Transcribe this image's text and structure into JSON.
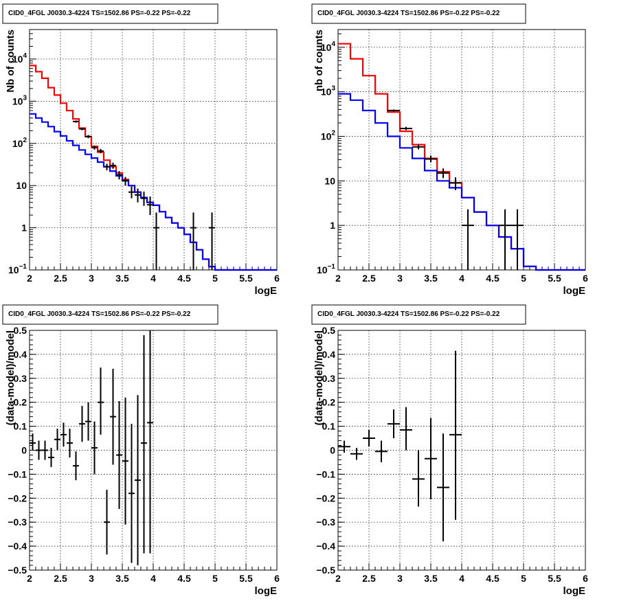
{
  "chart_data": [
    {
      "type": "line",
      "panel": "top-left",
      "title": "CID0_4FGL J0030.3-4224 TS=1502.86 PS=-0.22 PS=-0.22",
      "xlabel": "logE",
      "ylabel": "Nb of counts",
      "xlim": [
        2,
        6
      ],
      "ylim": [
        0.1,
        50000
      ],
      "yscale": "log",
      "grid": true,
      "x_ticks": [
        "2",
        "2.5",
        "3",
        "3.5",
        "4",
        "4.5",
        "5",
        "5.5",
        "6"
      ],
      "y_ticks": [
        {
          "v": 0.1,
          "label": "10",
          "sup": "−1"
        },
        {
          "v": 1,
          "label": "1",
          "sup": ""
        },
        {
          "v": 10,
          "label": "10",
          "sup": ""
        },
        {
          "v": 100,
          "label": "10",
          "sup": "2"
        },
        {
          "v": 1000,
          "label": "10",
          "sup": "3"
        },
        {
          "v": 10000,
          "label": "10",
          "sup": "4"
        }
      ],
      "bin_edges": [
        2.0,
        2.1,
        2.2,
        2.3,
        2.4,
        2.5,
        2.6,
        2.7,
        2.8,
        2.9,
        3.0,
        3.1,
        3.2,
        3.3,
        3.4,
        3.5,
        3.6,
        3.7,
        3.8,
        3.9,
        4.0,
        4.1,
        4.2,
        4.3,
        4.4,
        4.5,
        4.6,
        4.7,
        4.8,
        4.9,
        5.0,
        5.1,
        5.2,
        5.3,
        5.4,
        5.5,
        5.6,
        5.7,
        5.8,
        5.9,
        6.0
      ],
      "series": [
        {
          "color": "#ff0000",
          "kind": "step",
          "values": [
            7000,
            5000,
            3500,
            2100,
            1400,
            900,
            600,
            380,
            230,
            145,
            85,
            62,
            40,
            28,
            20,
            14,
            10,
            7,
            5.2,
            4,
            3.4,
            2.4,
            1.75,
            1.3,
            1.0,
            0.7,
            0.45,
            0.3,
            0.18,
            0.12,
            0.1,
            0.1,
            0.1,
            0.1,
            0.1,
            0.1,
            0.1,
            0.1,
            0.1,
            0.1
          ]
        },
        {
          "color": "#0000ff",
          "kind": "step",
          "values": [
            500,
            400,
            320,
            250,
            190,
            150,
            115,
            90,
            70,
            55,
            45,
            36,
            28,
            22,
            17,
            13,
            10,
            7,
            5.2,
            4,
            3.4,
            2.4,
            1.75,
            1.3,
            1.0,
            0.7,
            0.45,
            0.3,
            0.18,
            0.12,
            0.1,
            0.1,
            0.1,
            0.1,
            0.1,
            0.1,
            0.1,
            0.1,
            0.1,
            0.1
          ]
        },
        {
          "color": "#000000",
          "kind": "points",
          "points": [
            {
              "x": 2.75,
              "y": 330,
              "lo": 310,
              "hi": 350,
              "xerr": 0.05
            },
            {
              "x": 2.85,
              "y": 220,
              "lo": 205,
              "hi": 235,
              "xerr": 0.05
            },
            {
              "x": 2.95,
              "y": 145,
              "lo": 133,
              "hi": 158,
              "xerr": 0.05
            },
            {
              "x": 3.05,
              "y": 80,
              "lo": 71,
              "hi": 89,
              "xerr": 0.05
            },
            {
              "x": 3.15,
              "y": 66,
              "lo": 58,
              "hi": 74,
              "xerr": 0.05
            },
            {
              "x": 3.25,
              "y": 28,
              "lo": 23,
              "hi": 33,
              "xerr": 0.05
            },
            {
              "x": 3.35,
              "y": 30,
              "lo": 25,
              "hi": 35,
              "xerr": 0.05
            },
            {
              "x": 3.45,
              "y": 18,
              "lo": 14,
              "hi": 22,
              "xerr": 0.05
            },
            {
              "x": 3.55,
              "y": 13,
              "lo": 10,
              "hi": 16,
              "xerr": 0.05
            },
            {
              "x": 3.65,
              "y": 7,
              "lo": 5,
              "hi": 9.5,
              "xerr": 0.05
            },
            {
              "x": 3.75,
              "y": 6,
              "lo": 4,
              "hi": 8.5,
              "xerr": 0.05
            },
            {
              "x": 3.85,
              "y": 5,
              "lo": 3.3,
              "hi": 7.2,
              "xerr": 0.05
            },
            {
              "x": 3.95,
              "y": 3.5,
              "lo": 2,
              "hi": 5.5,
              "xerr": 0.05
            },
            {
              "x": 4.05,
              "y": 1,
              "lo": 0.1,
              "hi": 2.3,
              "xerr": 0.05
            },
            {
              "x": 4.65,
              "y": 1,
              "lo": 0.1,
              "hi": 2.3,
              "xerr": 0.05
            },
            {
              "x": 4.95,
              "y": 1,
              "lo": 0.1,
              "hi": 2.3,
              "xerr": 0.05
            }
          ]
        }
      ]
    },
    {
      "type": "line",
      "panel": "top-right",
      "title": "CID0_4FGL J0030.3-4224 TS=1502.86 PS=-0.22 PS=-0.22",
      "xlabel": "logE",
      "ylabel": "nb of counts",
      "xlim": [
        2,
        6
      ],
      "ylim": [
        0.1,
        25000
      ],
      "yscale": "log",
      "grid": true,
      "x_ticks": [
        "2",
        "2.5",
        "3",
        "3.5",
        "4",
        "4.5",
        "5",
        "5.5",
        "6"
      ],
      "y_ticks": [
        {
          "v": 0.1,
          "label": "10",
          "sup": "−1"
        },
        {
          "v": 1,
          "label": "1",
          "sup": ""
        },
        {
          "v": 10,
          "label": "10",
          "sup": ""
        },
        {
          "v": 100,
          "label": "10",
          "sup": "2"
        },
        {
          "v": 1000,
          "label": "10",
          "sup": "3"
        },
        {
          "v": 10000,
          "label": "10",
          "sup": "4"
        }
      ],
      "bin_edges": [
        2.0,
        2.2,
        2.4,
        2.6,
        2.8,
        3.0,
        3.2,
        3.4,
        3.6,
        3.8,
        4.0,
        4.2,
        4.4,
        4.6,
        4.8,
        5.0,
        5.2,
        5.4,
        5.6,
        5.8,
        6.0
      ],
      "series": [
        {
          "color": "#ff0000",
          "kind": "step",
          "values": [
            12000,
            5500,
            2300,
            900,
            350,
            130,
            65,
            32,
            16,
            9,
            4.2,
            2.0,
            1.0,
            0.55,
            0.3,
            0.12,
            0.1,
            0.1,
            0.1,
            0.1
          ]
        },
        {
          "color": "#0000ff",
          "kind": "step",
          "values": [
            900,
            650,
            380,
            200,
            100,
            55,
            32,
            17,
            10,
            7,
            4.2,
            2.0,
            1.0,
            0.55,
            0.3,
            0.12,
            0.1,
            0.1,
            0.1,
            0.1
          ]
        },
        {
          "color": "#000000",
          "kind": "points",
          "points": [
            {
              "x": 2.9,
              "y": 380,
              "lo": 360,
              "hi": 400,
              "xerr": 0.1
            },
            {
              "x": 3.1,
              "y": 150,
              "lo": 138,
              "hi": 163,
              "xerr": 0.1
            },
            {
              "x": 3.3,
              "y": 58,
              "lo": 51,
              "hi": 66,
              "xerr": 0.1
            },
            {
              "x": 3.5,
              "y": 31,
              "lo": 26,
              "hi": 37,
              "xerr": 0.1
            },
            {
              "x": 3.7,
              "y": 15,
              "lo": 11.5,
              "hi": 19,
              "xerr": 0.1
            },
            {
              "x": 3.9,
              "y": 9,
              "lo": 6.2,
              "hi": 12,
              "xerr": 0.1
            },
            {
              "x": 4.1,
              "y": 1,
              "lo": 0.1,
              "hi": 2.3,
              "xerr": 0.1
            },
            {
              "x": 4.7,
              "y": 1,
              "lo": 0.1,
              "hi": 2.3,
              "xerr": 0.1
            },
            {
              "x": 4.9,
              "y": 1,
              "lo": 0.1,
              "hi": 2.3,
              "xerr": 0.1
            }
          ]
        }
      ]
    },
    {
      "type": "scatter",
      "panel": "bottom-left",
      "title": "CID0_4FGL J0030.3-4224 TS=1502.86 PS=-0.22 PS=-0.22",
      "xlabel": "logE",
      "ylabel": "(data-model)/model",
      "xlim": [
        2,
        6
      ],
      "ylim": [
        -0.5,
        0.5
      ],
      "yscale": "linear",
      "grid": true,
      "x_ticks": [
        "2",
        "2.5",
        "3",
        "3.5",
        "4",
        "4.5",
        "5",
        "5.5",
        "6"
      ],
      "y_ticks": [
        {
          "v": -0.5,
          "label": "−0.5",
          "sup": ""
        },
        {
          "v": -0.4,
          "label": "−0.4",
          "sup": ""
        },
        {
          "v": -0.3,
          "label": "−0.3",
          "sup": ""
        },
        {
          "v": -0.2,
          "label": "−0.2",
          "sup": ""
        },
        {
          "v": -0.1,
          "label": "−0.1",
          "sup": ""
        },
        {
          "v": 0,
          "label": "0",
          "sup": ""
        },
        {
          "v": 0.1,
          "label": "0.1",
          "sup": ""
        },
        {
          "v": 0.2,
          "label": "0.2",
          "sup": ""
        },
        {
          "v": 0.3,
          "label": "0.3",
          "sup": ""
        },
        {
          "v": 0.4,
          "label": "0.4",
          "sup": ""
        },
        {
          "v": 0.5,
          "label": "0.5",
          "sup": ""
        }
      ],
      "series": [
        {
          "color": "#000000",
          "kind": "points",
          "points": [
            {
              "x": 2.05,
              "y": 0.03,
              "lo": 0.0,
              "hi": 0.07,
              "xerr": 0.05
            },
            {
              "x": 2.15,
              "y": 0.0,
              "lo": -0.04,
              "hi": 0.04,
              "xerr": 0.05
            },
            {
              "x": 2.25,
              "y": 0.0,
              "lo": -0.04,
              "hi": 0.04,
              "xerr": 0.05
            },
            {
              "x": 2.35,
              "y": -0.03,
              "lo": -0.07,
              "hi": 0.01,
              "xerr": 0.05
            },
            {
              "x": 2.45,
              "y": 0.045,
              "lo": 0.0,
              "hi": 0.09,
              "xerr": 0.05
            },
            {
              "x": 2.55,
              "y": 0.065,
              "lo": 0.015,
              "hi": 0.115,
              "xerr": 0.05
            },
            {
              "x": 2.65,
              "y": 0.03,
              "lo": -0.03,
              "hi": 0.09,
              "xerr": 0.05
            },
            {
              "x": 2.75,
              "y": -0.065,
              "lo": -0.125,
              "hi": -0.005,
              "xerr": 0.05
            },
            {
              "x": 2.85,
              "y": 0.11,
              "lo": 0.035,
              "hi": 0.185,
              "xerr": 0.05
            },
            {
              "x": 2.95,
              "y": 0.12,
              "lo": 0.04,
              "hi": 0.2,
              "xerr": 0.05
            },
            {
              "x": 3.05,
              "y": 0.01,
              "lo": -0.1,
              "hi": 0.12,
              "xerr": 0.05
            },
            {
              "x": 3.15,
              "y": 0.2,
              "lo": 0.065,
              "hi": 0.345,
              "xerr": 0.05
            },
            {
              "x": 3.25,
              "y": -0.3,
              "lo": -0.435,
              "hi": -0.165,
              "xerr": 0.05
            },
            {
              "x": 3.35,
              "y": 0.14,
              "lo": -0.06,
              "hi": 0.34,
              "xerr": 0.05
            },
            {
              "x": 3.45,
              "y": -0.02,
              "lo": -0.245,
              "hi": 0.205,
              "xerr": 0.05
            },
            {
              "x": 3.55,
              "y": -0.045,
              "lo": -0.31,
              "hi": 0.22,
              "xerr": 0.05
            },
            {
              "x": 3.65,
              "y": -0.18,
              "lo": -0.47,
              "hi": 0.11,
              "xerr": 0.05
            },
            {
              "x": 3.75,
              "y": -0.125,
              "lo": -0.48,
              "hi": 0.23,
              "xerr": 0.05
            },
            {
              "x": 3.85,
              "y": 0.03,
              "lo": -0.43,
              "hi": 0.48,
              "xerr": 0.05
            },
            {
              "x": 3.95,
              "y": 0.115,
              "lo": -0.43,
              "hi": 0.5,
              "xerr": 0.05
            }
          ]
        }
      ]
    },
    {
      "type": "scatter",
      "panel": "bottom-right",
      "title": "CID0_4FGL J0030.3-4224 TS=1502.86 PS=-0.22 PS=-0.22",
      "xlabel": "logE",
      "ylabel": "(data-model)/model",
      "xlim": [
        2,
        6
      ],
      "ylim": [
        -0.5,
        0.5
      ],
      "yscale": "linear",
      "grid": true,
      "x_ticks": [
        "2",
        "2.5",
        "3",
        "3.5",
        "4",
        "4.5",
        "5",
        "5.5",
        "6"
      ],
      "y_ticks": [
        {
          "v": -0.5,
          "label": "−0.5",
          "sup": ""
        },
        {
          "v": -0.4,
          "label": "−0.4",
          "sup": ""
        },
        {
          "v": -0.3,
          "label": "−0.3",
          "sup": ""
        },
        {
          "v": -0.2,
          "label": "−0.2",
          "sup": ""
        },
        {
          "v": -0.1,
          "label": "−0.1",
          "sup": ""
        },
        {
          "v": 0,
          "label": "0",
          "sup": ""
        },
        {
          "v": 0.1,
          "label": "0.1",
          "sup": ""
        },
        {
          "v": 0.2,
          "label": "0.2",
          "sup": ""
        },
        {
          "v": 0.3,
          "label": "0.3",
          "sup": ""
        },
        {
          "v": 0.4,
          "label": "0.4",
          "sup": ""
        },
        {
          "v": 0.5,
          "label": "0.5",
          "sup": ""
        }
      ],
      "series": [
        {
          "color": "#000000",
          "kind": "points",
          "points": [
            {
              "x": 2.1,
              "y": 0.015,
              "lo": -0.01,
              "hi": 0.04,
              "xerr": 0.1
            },
            {
              "x": 2.3,
              "y": -0.015,
              "lo": -0.04,
              "hi": 0.01,
              "xerr": 0.1
            },
            {
              "x": 2.5,
              "y": 0.05,
              "lo": 0.015,
              "hi": 0.085,
              "xerr": 0.1
            },
            {
              "x": 2.7,
              "y": -0.005,
              "lo": -0.05,
              "hi": 0.04,
              "xerr": 0.1
            },
            {
              "x": 2.9,
              "y": 0.11,
              "lo": 0.05,
              "hi": 0.17,
              "xerr": 0.1
            },
            {
              "x": 3.1,
              "y": 0.085,
              "lo": 0.0,
              "hi": 0.18,
              "xerr": 0.1
            },
            {
              "x": 3.3,
              "y": -0.12,
              "lo": -0.235,
              "hi": 0.0,
              "xerr": 0.1
            },
            {
              "x": 3.5,
              "y": -0.035,
              "lo": -0.205,
              "hi": 0.135,
              "xerr": 0.1
            },
            {
              "x": 3.7,
              "y": -0.155,
              "lo": -0.38,
              "hi": 0.07,
              "xerr": 0.1
            },
            {
              "x": 3.9,
              "y": 0.065,
              "lo": -0.29,
              "hi": 0.415,
              "xerr": 0.1
            }
          ]
        }
      ]
    }
  ]
}
